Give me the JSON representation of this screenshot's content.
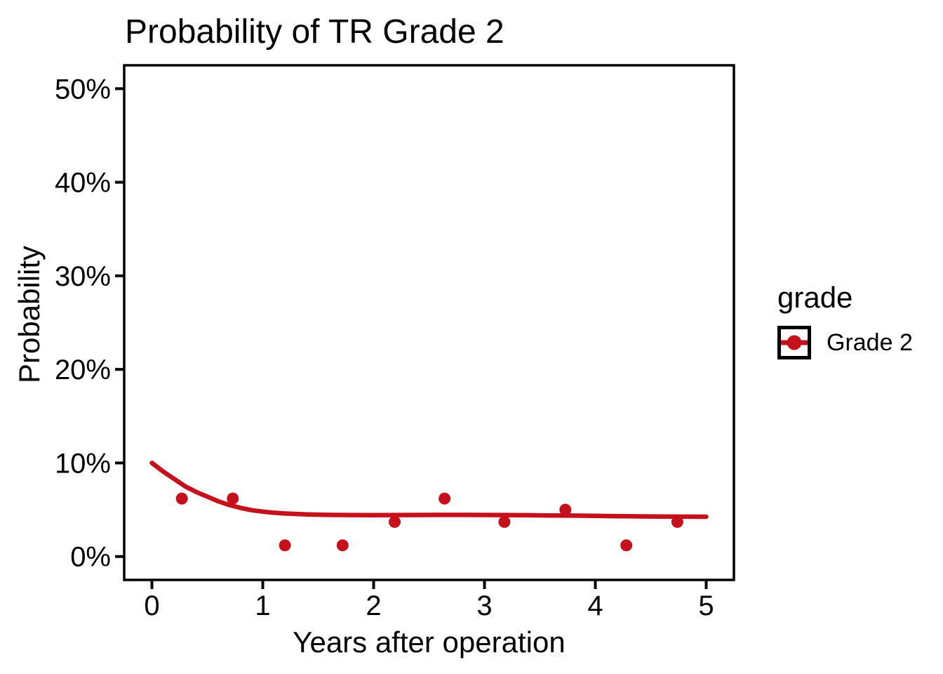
{
  "figure": {
    "background": "#FFFFFF",
    "text_color": "#000000"
  },
  "chart_data": {
    "type": "scatter",
    "title": "Probability of TR Grade 2",
    "xlabel": "Years after operation",
    "ylabel": "Probability",
    "xlim": [
      -0.25,
      5.25
    ],
    "ylim": [
      -2.5,
      52.5
    ],
    "grid": false,
    "panel_border_color": "#000000",
    "tick_color": "#000000",
    "x_ticks": [
      {
        "value": 0,
        "label": "0"
      },
      {
        "value": 1,
        "label": "1"
      },
      {
        "value": 2,
        "label": "2"
      },
      {
        "value": 3,
        "label": "3"
      },
      {
        "value": 4,
        "label": "4"
      },
      {
        "value": 5,
        "label": "5"
      }
    ],
    "y_ticks": [
      {
        "value": 0,
        "label": "0%"
      },
      {
        "value": 10,
        "label": "10%"
      },
      {
        "value": 20,
        "label": "20%"
      },
      {
        "value": 30,
        "label": "30%"
      },
      {
        "value": 40,
        "label": "40%"
      },
      {
        "value": 50,
        "label": "50%"
      }
    ],
    "series": [
      {
        "name": "Grade 2 observed points",
        "geom": "point",
        "color": "#C4111B",
        "unit": "percent",
        "points": [
          [
            0.27,
            6.2
          ],
          [
            0.73,
            6.2
          ],
          [
            1.2,
            1.2
          ],
          [
            1.72,
            1.2
          ],
          [
            2.19,
            3.7
          ],
          [
            2.64,
            6.2
          ],
          [
            3.18,
            3.7
          ],
          [
            3.73,
            5.0
          ],
          [
            4.28,
            1.2
          ],
          [
            4.74,
            3.7
          ]
        ]
      },
      {
        "name": "Grade 2 smooth fit",
        "geom": "line",
        "color": "#C4111B",
        "unit": "percent",
        "points": [
          [
            0.0,
            10.0
          ],
          [
            0.1,
            9.1
          ],
          [
            0.2,
            8.3
          ],
          [
            0.3,
            7.5
          ],
          [
            0.4,
            6.9
          ],
          [
            0.5,
            6.4
          ],
          [
            0.6,
            5.9
          ],
          [
            0.7,
            5.5
          ],
          [
            0.8,
            5.2
          ],
          [
            0.9,
            4.95
          ],
          [
            1.0,
            4.8
          ],
          [
            1.1,
            4.68
          ],
          [
            1.2,
            4.6
          ],
          [
            1.4,
            4.5
          ],
          [
            1.6,
            4.45
          ],
          [
            1.8,
            4.43
          ],
          [
            2.0,
            4.42
          ],
          [
            2.2,
            4.43
          ],
          [
            2.4,
            4.44
          ],
          [
            2.6,
            4.45
          ],
          [
            2.8,
            4.45
          ],
          [
            3.0,
            4.44
          ],
          [
            3.2,
            4.43
          ],
          [
            3.4,
            4.41
          ],
          [
            3.6,
            4.39
          ],
          [
            3.8,
            4.37
          ],
          [
            4.0,
            4.34
          ],
          [
            4.2,
            4.31
          ],
          [
            4.4,
            4.29
          ],
          [
            4.6,
            4.27
          ],
          [
            4.8,
            4.26
          ],
          [
            5.0,
            4.25
          ]
        ]
      }
    ],
    "legend": {
      "title": "grade",
      "position": "right",
      "entries": [
        {
          "label": "Grade 2",
          "color": "#C4111B",
          "key": "line-with-point"
        }
      ]
    }
  }
}
